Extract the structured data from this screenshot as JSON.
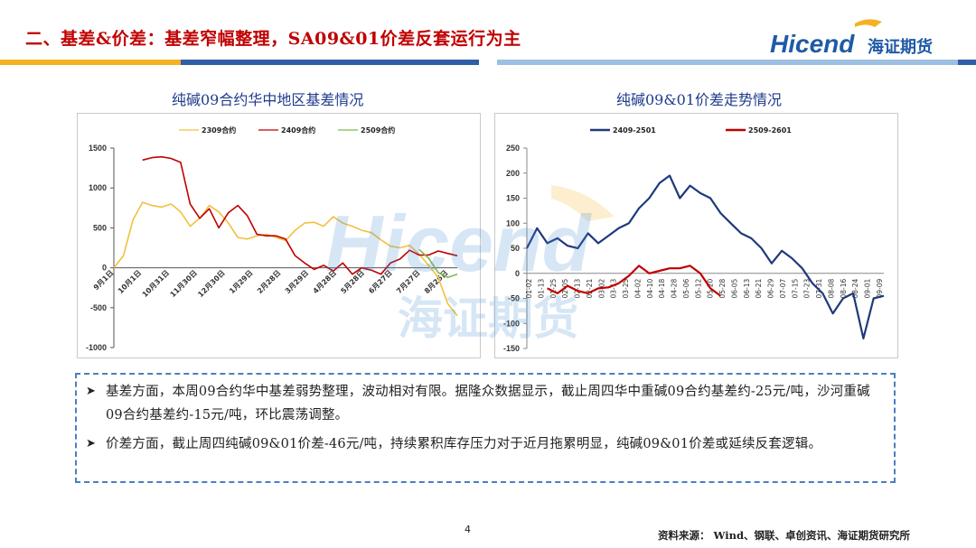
{
  "header": {
    "title": "二、基差&价差：基差窄幅整理，SA09&01价差反套运行为主",
    "logo_text": "Hicend",
    "logo_cn": "海证期货",
    "bar_colors": [
      "#f4b223",
      "#2f5fa9",
      "#9dbfe2",
      "#2f5fa9"
    ]
  },
  "watermark": {
    "text_en": "Hicend",
    "text_cn": "海证期货"
  },
  "left_chart": {
    "title": "纯碱09合约华中地区基差情况",
    "chart_data": {
      "type": "line",
      "title": "纯碱09合约华中地区基差情况",
      "ylim": [
        -1000,
        1500
      ],
      "yticks": [
        -1000,
        -500,
        0,
        500,
        1000,
        1500
      ],
      "x_tick_labels": [
        "9月1日",
        "10月1日",
        "10月31日",
        "11月30日",
        "12月30日",
        "1月29日",
        "2月28日",
        "3月29日",
        "4月28日",
        "5月28日",
        "6月27日",
        "7月27日",
        "8月26日"
      ],
      "series": [
        {
          "name": "2309合约",
          "color": "#f2c040",
          "values": [
            0,
            150,
            600,
            820,
            780,
            760,
            800,
            700,
            520,
            620,
            780,
            700,
            560,
            380,
            360,
            400,
            420,
            380,
            340,
            470,
            560,
            570,
            520,
            640,
            560,
            520,
            470,
            440,
            350,
            270,
            250,
            280,
            170,
            30,
            -120,
            -450,
            -600
          ]
        },
        {
          "name": "2409合约",
          "color": "#c00000",
          "values": [
            null,
            null,
            null,
            1350,
            1380,
            1390,
            1370,
            1320,
            800,
            620,
            740,
            500,
            690,
            780,
            650,
            420,
            400,
            400,
            360,
            150,
            60,
            -20,
            30,
            -40,
            60,
            -80,
            0,
            -30,
            -80,
            60,
            110,
            220,
            160,
            160,
            210,
            180,
            150
          ]
        },
        {
          "name": "2509合约",
          "color": "#7fba4a",
          "values": [
            null,
            null,
            null,
            null,
            null,
            null,
            null,
            null,
            null,
            null,
            null,
            null,
            null,
            null,
            null,
            null,
            null,
            null,
            null,
            null,
            null,
            null,
            null,
            null,
            null,
            null,
            null,
            null,
            null,
            null,
            null,
            null,
            230,
            120,
            -60,
            -120,
            -80
          ]
        }
      ],
      "legend": "top-center"
    }
  },
  "right_chart": {
    "title": "纯碱09&01价差走势情况",
    "chart_data": {
      "type": "line",
      "title": "纯碱09&01价差走势情况",
      "ylim": [
        -150,
        250
      ],
      "yticks": [
        -150,
        -100,
        -50,
        0,
        50,
        100,
        150,
        200,
        250
      ],
      "x_tick_labels": [
        "01-02",
        "01-13",
        "01-25",
        "02-05",
        "02-13",
        "02-21",
        "03-02",
        "03-13",
        "03-25",
        "04-02",
        "04-10",
        "04-18",
        "04-28",
        "05-06",
        "05-12",
        "05-20",
        "05-28",
        "06-05",
        "06-13",
        "06-21",
        "06-29",
        "07-07",
        "07-15",
        "07-23",
        "07-31",
        "08-08",
        "08-16",
        "08-24",
        "09-01",
        "09-09"
      ],
      "series": [
        {
          "name": "2409-2501",
          "color": "#1f3a7a",
          "values": [
            50,
            90,
            60,
            70,
            55,
            50,
            80,
            60,
            75,
            90,
            100,
            130,
            150,
            180,
            195,
            150,
            175,
            160,
            150,
            120,
            100,
            80,
            70,
            50,
            20,
            45,
            30,
            10,
            -20,
            -40,
            -80,
            -50,
            -40,
            -130,
            -50,
            -45
          ]
        },
        {
          "name": "2509-2601",
          "color": "#c00000",
          "values": [
            null,
            null,
            -30,
            -40,
            -25,
            -35,
            -40,
            -30,
            -28,
            -20,
            -5,
            15,
            0,
            5,
            10,
            10,
            15,
            0,
            -30,
            -45
          ]
        }
      ],
      "legend": "top-center"
    }
  },
  "bullets": [
    {
      "text": "基差方面，本周09合约华中基差弱势整理，波动相对有限。据隆众数据显示，截止周四华中重碱09合约基差约-25元/吨，沙河重碱09合约基差约-15元/吨，环比震荡调整。"
    },
    {
      "text": "价差方面，截止周四纯碱09&01价差-46元/吨，持续累积库存压力对于近月拖累明显，纯碱09&01价差或延续反套逻辑。"
    }
  ],
  "footer": {
    "page_number": "4",
    "source": "资料来源：  Wind、钢联、卓创资讯、海证期货研究所"
  }
}
